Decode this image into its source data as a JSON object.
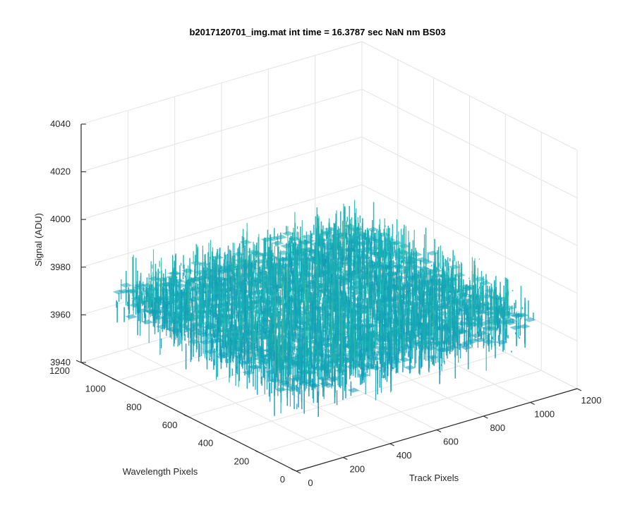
{
  "chart_data": {
    "type": "surface",
    "title": "b2017120701_img.mat int time = 16.3787 sec  NaN nm BS03",
    "xlabel": "Track Pixels",
    "ylabel": "Wavelength Pixels",
    "zlabel": "Signal (ADU)",
    "xlim": [
      0,
      1200
    ],
    "ylim": [
      0,
      1200
    ],
    "zlim": [
      3940,
      4040
    ],
    "x_ticks": [
      "0",
      "200",
      "400",
      "600",
      "800",
      "1000",
      "1200"
    ],
    "y_ticks": [
      "0",
      "200",
      "400",
      "600",
      "800",
      "1000",
      "1200"
    ],
    "z_ticks": [
      "3940",
      "3960",
      "3980",
      "4000",
      "4020",
      "4040"
    ],
    "surface": {
      "x_range": [
        0,
        1024
      ],
      "y_range": [
        0,
        1024
      ],
      "mean_signal": 3975,
      "noise_min": 3945,
      "noise_max": 4025
    },
    "grid": true,
    "colormap": "parula",
    "colors": {
      "low": "#0072BD",
      "mid": "#1AB3B3",
      "high": "#EDD94A"
    }
  }
}
